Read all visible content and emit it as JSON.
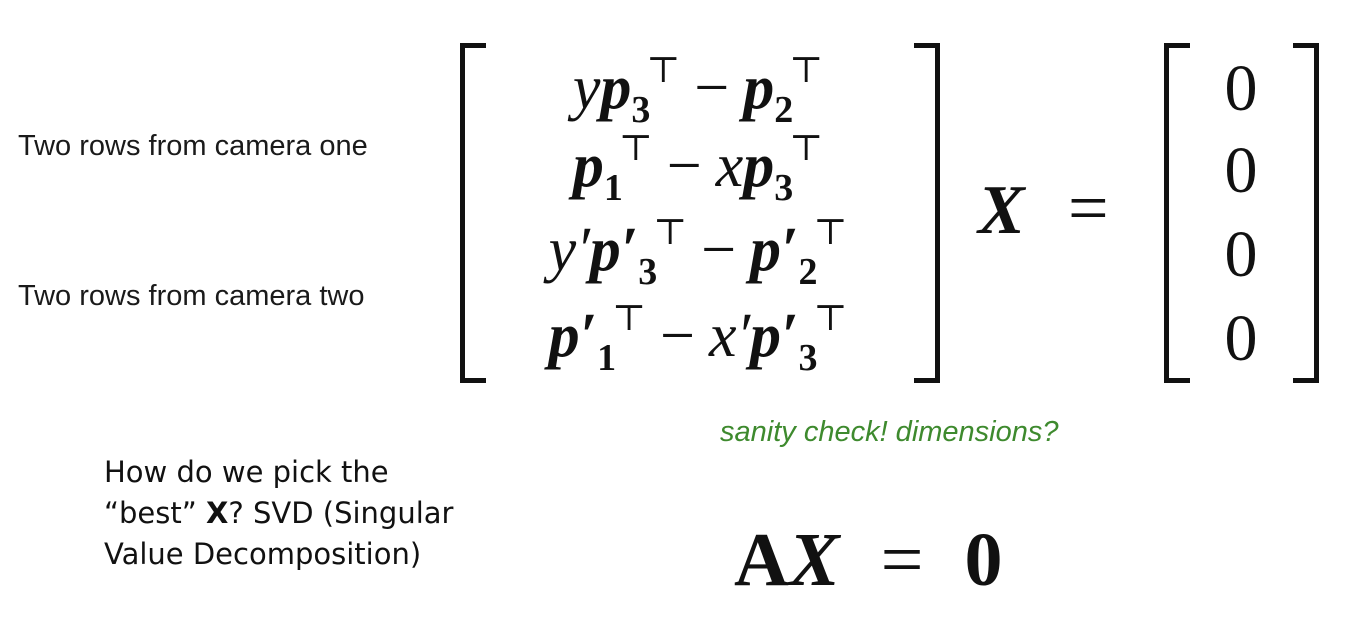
{
  "labels": {
    "camera_one": "Two rows from camera one",
    "camera_two": "Two rows from camera two"
  },
  "matrix_rows": [
    {
      "a_coef": "y",
      "a_vec": "p",
      "a_prime": "",
      "a_sub": "3",
      "op": "−",
      "b_coef": "",
      "b_vec": "p",
      "b_prime": "",
      "b_sub": "2",
      "transpose": "⊤"
    },
    {
      "a_coef": "",
      "a_vec": "p",
      "a_prime": "",
      "a_sub": "1",
      "op": "−",
      "b_coef": "x",
      "b_vec": "p",
      "b_prime": "",
      "b_sub": "3",
      "transpose": "⊤"
    },
    {
      "a_coef": "y′",
      "a_vec": "p",
      "a_prime": "′",
      "a_sub": "3",
      "op": "−",
      "b_coef": "",
      "b_vec": "p",
      "b_prime": "′",
      "b_sub": "2",
      "transpose": "⊤"
    },
    {
      "a_coef": "",
      "a_vec": "p",
      "a_prime": "′",
      "a_sub": "1",
      "op": "−",
      "b_coef": "x′",
      "b_vec": "p",
      "b_prime": "′",
      "b_sub": "3",
      "transpose": "⊤"
    }
  ],
  "unknown": "X",
  "equals": "=",
  "zeros": [
    "0",
    "0",
    "0",
    "0"
  ],
  "sanity_note": "sanity check! dimensions?",
  "question": {
    "line1": "How do we pick the",
    "line2_pre": "“best” ",
    "line2_bold": "X",
    "line2_post": "? SVD (Singular",
    "line3": "Value Decomposition)"
  },
  "compact_equation": {
    "A": "A",
    "X": "X",
    "eq": "=",
    "rhs": "0"
  },
  "colors": {
    "sanity_note": "#3e8a2e",
    "text": "#111111"
  }
}
